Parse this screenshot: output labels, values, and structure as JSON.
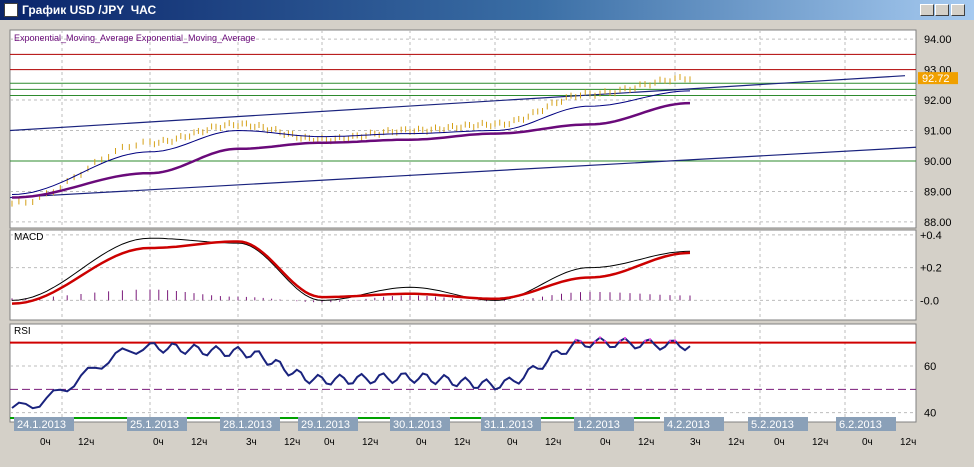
{
  "window": {
    "title": "График USD /JPY  ЧАС",
    "minimize": "_",
    "maximize": "□",
    "close": "×"
  },
  "colors": {
    "bg": "#ffffff",
    "grid": "#bdbdbd",
    "price": "#d4a017",
    "ema_fast": "#000080",
    "ema_slow": "#6a0a7a",
    "channel": "#1a237e",
    "macd_main": "#000000",
    "macd_signal": "#cc0000",
    "macd_hist": "#7a1a7a",
    "rsi": "#1a237e",
    "rsi_hi": "#e040e0",
    "rsi_level": "#d00000",
    "rsi_mid": "#7a1a7a",
    "date_box": "#8aa0b8",
    "price_tag": "#f0a000"
  },
  "main_panel": {
    "label": "Exponential_Moving_Average Exponential_Moving_Average",
    "y_ticks": [
      "94.00",
      "93.00",
      "92.00",
      "91.00",
      "90.00",
      "89.00",
      "88.00"
    ],
    "current_price": "92.72",
    "hidden_tick": "93.00"
  },
  "macd_panel": {
    "label": "MACD",
    "y_ticks": [
      "+0.4",
      "+0.2",
      "-0.0"
    ]
  },
  "rsi_panel": {
    "label": "RSI",
    "y_ticks": [
      "60",
      "40"
    ]
  },
  "dates": [
    "24.1.2013",
    "25.1.2013",
    "28.1.2013",
    "29.1.2013",
    "30.1.2013",
    "31.1.2013",
    "1.2.2013",
    "4.2.2013",
    "5.2.2013",
    "6.2.2013"
  ],
  "hour_labels": [
    [
      "0ч",
      "12ч"
    ],
    [
      "0ч",
      "12ч"
    ],
    [
      "3ч",
      "12ч"
    ],
    [
      "0ч",
      "12ч"
    ],
    [
      "0ч",
      "12ч"
    ],
    [
      "0ч",
      "12ч"
    ],
    [
      "0ч",
      "12ч"
    ],
    [
      "3ч",
      "12ч"
    ],
    [
      "0ч",
      "12ч"
    ],
    [
      "0ч",
      "12ч"
    ]
  ],
  "chart_data": {
    "type": "line",
    "title": "График USD /JPY  ЧАС",
    "x": [
      "24.1.2013",
      "25.1.2013",
      "28.1.2013",
      "29.1.2013",
      "30.1.2013",
      "31.1.2013",
      "1.2.2013",
      "4.2.2013"
    ],
    "series": [
      {
        "name": "Exponential_Moving_Average",
        "values": [
          88.9,
          90.3,
          91.0,
          90.8,
          90.9,
          91.0,
          91.8,
          92.3
        ]
      },
      {
        "name": "Exponential_Moving_Average",
        "values": [
          88.8,
          89.6,
          90.4,
          90.6,
          90.7,
          90.9,
          91.2,
          91.9
        ]
      }
    ],
    "price_close": [
      88.6,
      90.6,
      91.2,
      90.7,
      91.0,
      91.2,
      92.2,
      92.72
    ],
    "ylim": [
      87.8,
      94.3
    ],
    "macd": {
      "main": [
        0.0,
        0.38,
        0.35,
        0.0,
        0.08,
        0.0,
        0.2,
        0.3
      ],
      "signal": [
        -0.02,
        0.32,
        0.36,
        0.02,
        0.04,
        0.01,
        0.14,
        0.29
      ],
      "ylim": [
        -0.12,
        0.43
      ]
    },
    "rsi": {
      "values": [
        42,
        68,
        66,
        54,
        55,
        52,
        70,
        69
      ],
      "levels": [
        70,
        50
      ],
      "ylim": [
        36,
        78
      ]
    }
  }
}
